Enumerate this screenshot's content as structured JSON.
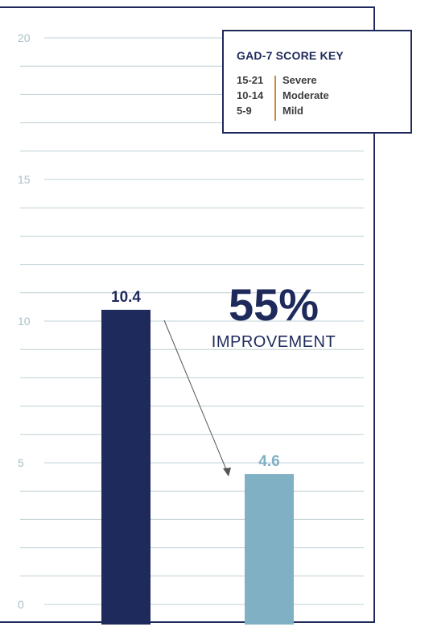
{
  "chart_data": {
    "type": "bar",
    "categories": [
      "",
      ""
    ],
    "values": [
      10.4,
      4.6
    ],
    "value_labels": [
      "10.4",
      "4.6"
    ],
    "bar_colors": [
      "#1f2a5c",
      "#7fb0c4"
    ],
    "ylim": [
      0,
      20
    ],
    "y_ticks": [
      0,
      5,
      10,
      15,
      20
    ],
    "grid": true,
    "title": "",
    "xlabel": "",
    "ylabel": ""
  },
  "score_key": {
    "title": "GAD-7 SCORE KEY",
    "rows": [
      {
        "range": "15-21",
        "level": "Severe"
      },
      {
        "range": "10-14",
        "level": "Moderate"
      },
      {
        "range": "5-9",
        "level": "Mild"
      }
    ],
    "accent_color": "#c98a3f"
  },
  "callout": {
    "percent": "55%",
    "label": "IMPROVEMENT"
  },
  "colors": {
    "frame": "#1f2a5c",
    "grid": "#bfd0d5",
    "tick_label": "#a9bfc6"
  }
}
